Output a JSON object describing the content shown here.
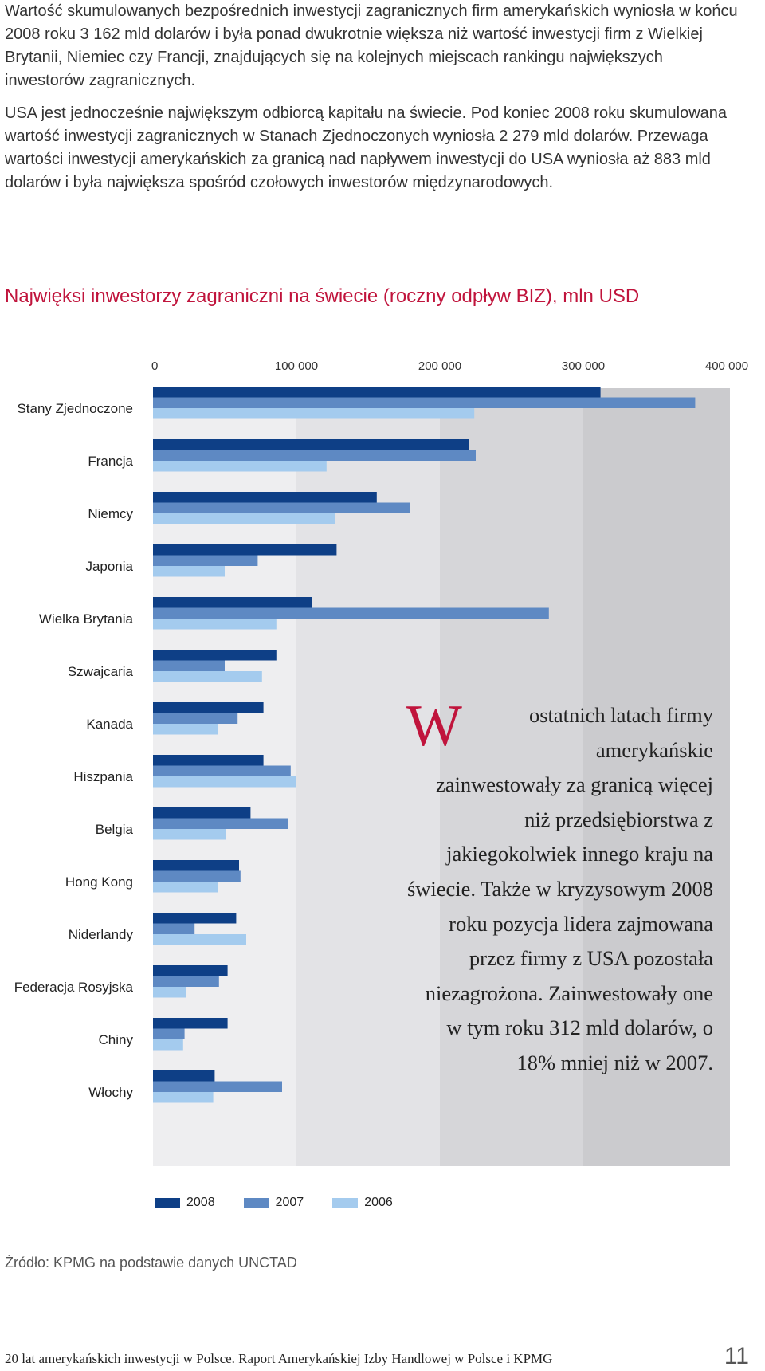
{
  "paragraphs": [
    "Wartość skumulowanych bezpośrednich inwestycji zagranicznych firm amerykańskich wyniosła w końcu 2008 roku 3 162 mld dolarów i była ponad dwukrotnie większa niż wartość inwestycji firm z Wielkiej Brytanii, Niemiec czy Francji, znajdujących się na kolejnych miejscach rankingu największych inwestorów zagranicznych.",
    "USA jest jednocześnie największym odbiorcą kapitału na świecie. Pod koniec 2008 roku skumulowana wartość inwestycji zagranicznych w Stanach Zjednoczonych wyniosła 2 279 mld dolarów. Przewaga wartości inwestycji amerykańskich za granicą nad napływem inwestycji do USA wyniosła aż 883 mld dolarów i była największa spośród czołowych inwestorów międzynarodowych."
  ],
  "pullquote": {
    "dropcap": "W",
    "text": "ostatnich latach firmy amerykańskie zainwestowały za granicą więcej niż przedsiębiorstwa z jakiegokolwiek innego kraju na świecie. Także w kryzysowym 2008 roku pozycja lidera zajmowana przez firmy z USA pozostała niezagrożona. Zainwestowały one w tym roku 312 mld dolarów, o 18% mniej niż w 2007."
  },
  "source": "Źródło: KPMG na podstawie danych UNCTAD",
  "footer": {
    "text": "20 lat amerykańskich inwestycji w Polsce. Raport Amerykańskiej Izby Handlowej w Polsce i KPMG",
    "page": "11"
  },
  "colors": {
    "title": "#c0143c",
    "series": [
      "#0e3f86",
      "#5e89c3",
      "#a4cbee"
    ],
    "bands": [
      "#eeeef0",
      "#e3e3e6",
      "#d6d6d9",
      "#cbcbce"
    ]
  },
  "chart_data": {
    "type": "bar",
    "orientation": "horizontal",
    "title": "Najwięksi inwestorzy zagraniczni na świecie (roczny odpływ BIZ), mln USD",
    "xticks": [
      "0",
      "100 000",
      "200 000",
      "300 000",
      "400 000"
    ],
    "xlim": [
      0,
      400000
    ],
    "categories": [
      "Stany Zjednoczone",
      "Francja",
      "Niemcy",
      "Japonia",
      "Wielka Brytania",
      "Szwajcaria",
      "Kanada",
      "Hiszpania",
      "Belgia",
      "Hong Kong",
      "Niderlandy",
      "Federacja Rosyjska",
      "Chiny",
      "Włochy"
    ],
    "series": [
      {
        "name": "2008",
        "values": [
          312000,
          220000,
          156000,
          128000,
          111000,
          86000,
          77000,
          77000,
          68000,
          60000,
          58000,
          52000,
          52000,
          43000
        ]
      },
      {
        "name": "2007",
        "values": [
          378000,
          225000,
          179000,
          73000,
          276000,
          50000,
          59000,
          96000,
          94000,
          61000,
          29000,
          46000,
          22000,
          90000
        ]
      },
      {
        "name": "2006",
        "values": [
          224000,
          121000,
          127000,
          50000,
          86000,
          76000,
          45000,
          100000,
          51000,
          45000,
          65000,
          23000,
          21000,
          42000
        ]
      }
    ],
    "legend_position": "bottom",
    "grid": false
  }
}
